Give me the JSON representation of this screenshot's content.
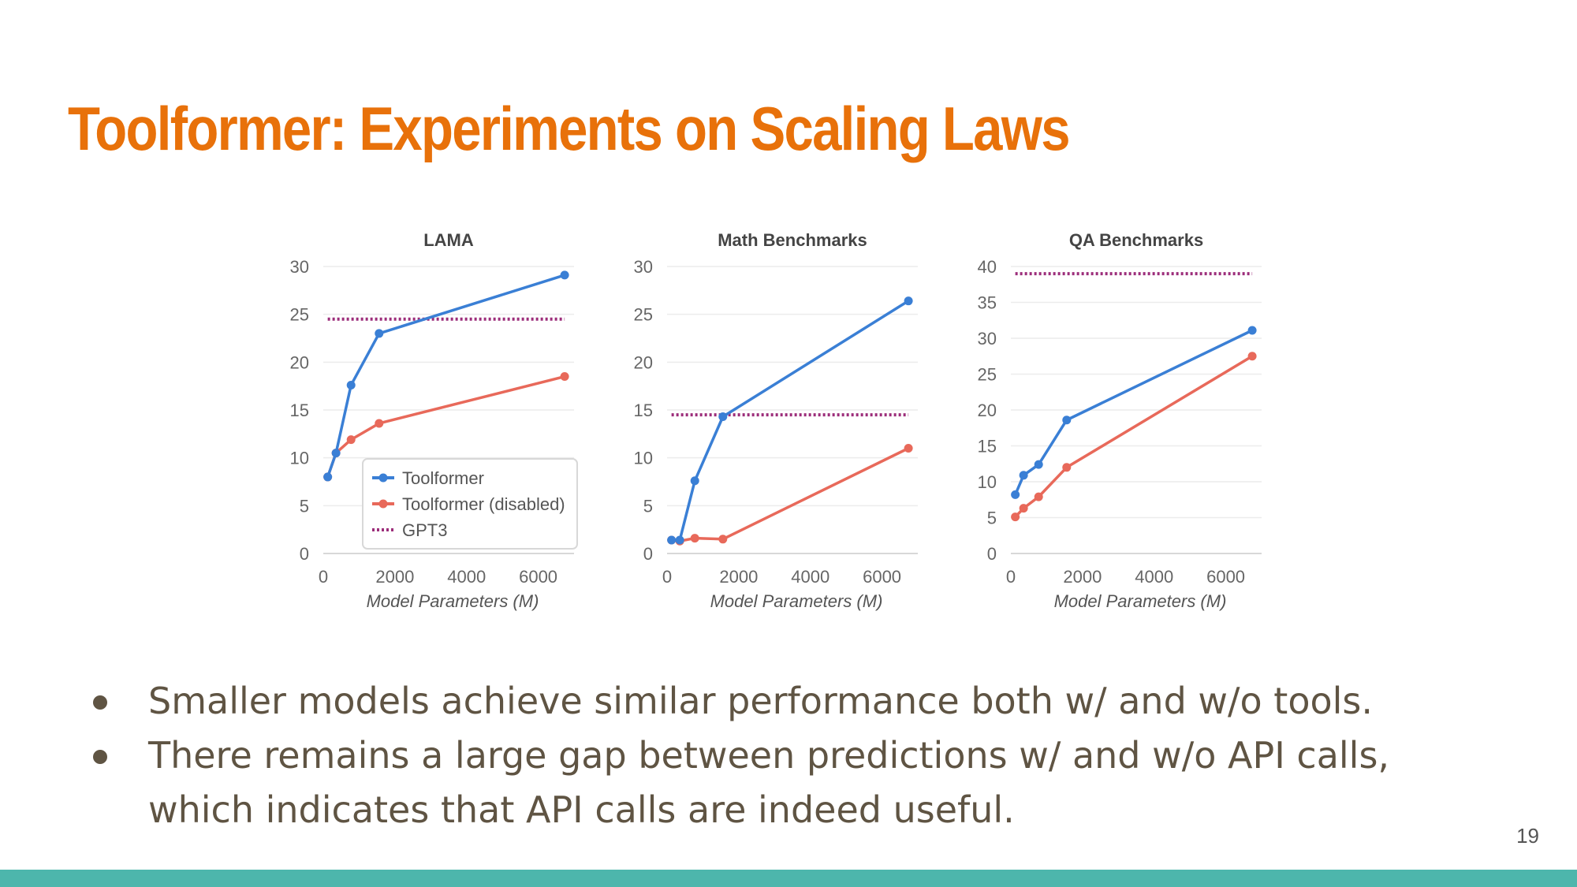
{
  "slide": {
    "title": "Toolformer: Experiments on Scaling Laws",
    "title_color": "#e8710a",
    "page_number": "19",
    "footer_color": "#4db6ac",
    "bullets": [
      "Smaller models achieve similar performance both w/ and w/o tools.",
      "There remains a large gap between predictions w/ and w/o API calls, which indicates that API calls are indeed useful."
    ]
  },
  "legend": {
    "position": "lower-right",
    "items": [
      {
        "label": "Toolformer",
        "color": "#3a7fd5",
        "style": "line-marker"
      },
      {
        "label": "Toolformer (disabled)",
        "color": "#e8695a",
        "style": "line-marker"
      },
      {
        "label": "GPT3",
        "color": "#9c2d7a",
        "style": "dotted"
      }
    ]
  },
  "chart_data": [
    {
      "type": "line",
      "title": "LAMA",
      "xlabel": "Model Parameters (M)",
      "ylabel": "",
      "xlim": [
        0,
        7000
      ],
      "ylim": [
        0,
        30
      ],
      "xticks": [
        0,
        2000,
        4000,
        6000
      ],
      "yticks": [
        0,
        5,
        10,
        15,
        20,
        25,
        30
      ],
      "grid": true,
      "series": [
        {
          "name": "Toolformer",
          "color": "#3a7fd5",
          "x": [
            124,
            355,
            775,
            1558,
            6738
          ],
          "y": [
            8,
            10.5,
            17.6,
            23,
            29.1
          ]
        },
        {
          "name": "Toolformer (disabled)",
          "color": "#e8695a",
          "x": [
            124,
            355,
            775,
            1558,
            6738
          ],
          "y": [
            8,
            10.5,
            11.9,
            13.6,
            18.5
          ]
        },
        {
          "name": "GPT3",
          "color": "#9c2d7a",
          "dashed": true,
          "x": [
            124,
            6738
          ],
          "y": [
            24.5,
            24.5
          ]
        }
      ]
    },
    {
      "type": "line",
      "title": "Math Benchmarks",
      "xlabel": "Model Parameters (M)",
      "ylabel": "",
      "xlim": [
        0,
        7000
      ],
      "ylim": [
        0,
        30
      ],
      "xticks": [
        0,
        2000,
        4000,
        6000
      ],
      "yticks": [
        0,
        5,
        10,
        15,
        20,
        25,
        30
      ],
      "grid": true,
      "series": [
        {
          "name": "Toolformer",
          "color": "#3a7fd5",
          "x": [
            124,
            355,
            775,
            1558,
            6738
          ],
          "y": [
            1.4,
            1.4,
            7.6,
            14.3,
            26.4
          ]
        },
        {
          "name": "Toolformer (disabled)",
          "color": "#e8695a",
          "x": [
            124,
            355,
            775,
            1558,
            6738
          ],
          "y": [
            1.4,
            1.3,
            1.6,
            1.5,
            11
          ]
        },
        {
          "name": "GPT3",
          "color": "#9c2d7a",
          "dashed": true,
          "x": [
            124,
            6738
          ],
          "y": [
            14.5,
            14.5
          ]
        }
      ]
    },
    {
      "type": "line",
      "title": "QA Benchmarks",
      "xlabel": "Model Parameters (M)",
      "ylabel": "",
      "xlim": [
        0,
        7000
      ],
      "ylim": [
        0,
        40
      ],
      "xticks": [
        0,
        2000,
        4000,
        6000
      ],
      "yticks": [
        0,
        5,
        10,
        15,
        20,
        25,
        30,
        35,
        40
      ],
      "grid": true,
      "series": [
        {
          "name": "Toolformer",
          "color": "#3a7fd5",
          "x": [
            124,
            355,
            775,
            1558,
            6738
          ],
          "y": [
            8.2,
            10.9,
            12.4,
            18.6,
            31.1
          ]
        },
        {
          "name": "Toolformer (disabled)",
          "color": "#e8695a",
          "x": [
            124,
            355,
            775,
            1558,
            6738
          ],
          "y": [
            5.1,
            6.3,
            7.9,
            12,
            27.5
          ]
        },
        {
          "name": "GPT3",
          "color": "#9c2d7a",
          "dashed": true,
          "x": [
            124,
            6738
          ],
          "y": [
            39,
            39
          ]
        }
      ]
    }
  ]
}
